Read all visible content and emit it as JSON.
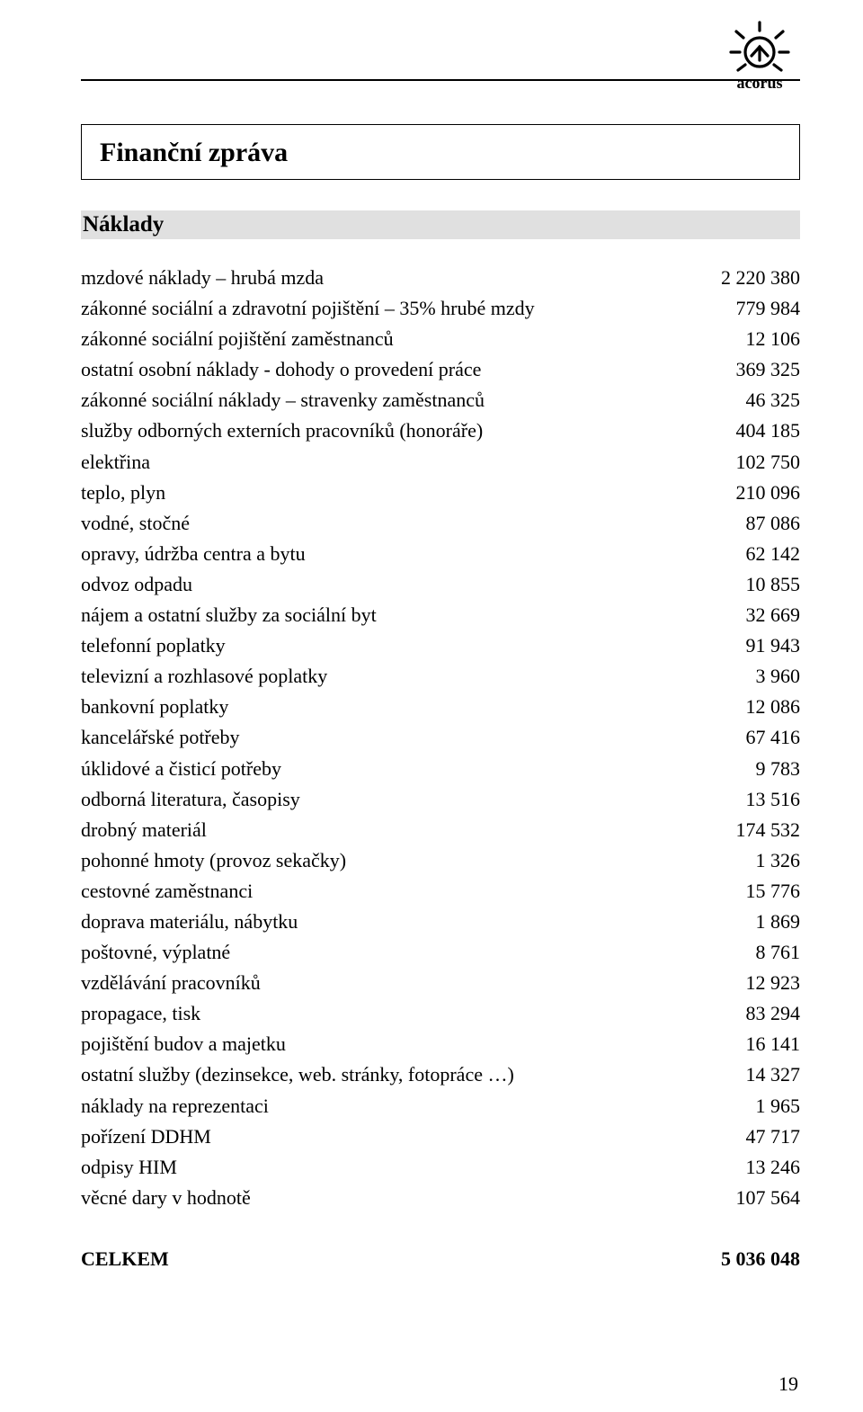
{
  "brand": {
    "name": "acorus"
  },
  "title": "Finanční zpráva",
  "section": "Náklady",
  "rows": [
    {
      "label": "mzdové náklady – hrubá mzda",
      "value": "2 220 380"
    },
    {
      "label": "zákonné sociální a zdravotní pojištění – 35% hrubé mzdy",
      "value": "779 984"
    },
    {
      "label": "zákonné sociální pojištění zaměstnanců",
      "value": "12 106"
    },
    {
      "label": "ostatní osobní náklady - dohody o provedení práce",
      "value": "369 325"
    },
    {
      "label": "zákonné sociální náklady – stravenky zaměstnanců",
      "value": "46 325"
    },
    {
      "label": "služby odborných externích pracovníků (honoráře)",
      "value": "404 185"
    },
    {
      "label": "elektřina",
      "value": "102 750"
    },
    {
      "label": "teplo, plyn",
      "value": "210 096"
    },
    {
      "label": "vodné, stočné",
      "value": "87 086"
    },
    {
      "label": "opravy, údržba centra a bytu",
      "value": "62 142"
    },
    {
      "label": "odvoz odpadu",
      "value": "10 855"
    },
    {
      "label": "nájem a ostatní služby za sociální byt",
      "value": "32 669"
    },
    {
      "label": "telefonní poplatky",
      "value": "91 943"
    },
    {
      "label": "televizní a rozhlasové poplatky",
      "value": "3 960"
    },
    {
      "label": "bankovní poplatky",
      "value": "12 086"
    },
    {
      "label": "kancelářské potřeby",
      "value": "67 416"
    },
    {
      "label": "úklidové a čisticí potřeby",
      "value": "9 783"
    },
    {
      "label": "odborná literatura, časopisy",
      "value": "13 516"
    },
    {
      "label": "drobný materiál",
      "value": "174 532"
    },
    {
      "label": "pohonné hmoty (provoz sekačky)",
      "value": "1 326"
    },
    {
      "label": "cestovné zaměstnanci",
      "value": "15 776"
    },
    {
      "label": "doprava materiálu, nábytku",
      "value": "1 869"
    },
    {
      "label": "poštovné, výplatné",
      "value": "8 761"
    },
    {
      "label": "vzdělávání pracovníků",
      "value": "12 923"
    },
    {
      "label": "propagace, tisk",
      "value": "83 294"
    },
    {
      "label": "pojištění budov a majetku",
      "value": "16 141"
    },
    {
      "label": "ostatní služby (dezinsekce, web. stránky, fotopráce …)",
      "value": "14 327"
    },
    {
      "label": "náklady na reprezentaci",
      "value": "1 965"
    },
    {
      "label": "pořízení DDHM",
      "value": "47 717"
    },
    {
      "label": "odpisy HIM",
      "value": "13 246"
    },
    {
      "label": "věcné dary v hodnotě",
      "value": "107 564"
    }
  ],
  "total": {
    "label": "CELKEM",
    "value": "5 036 048"
  },
  "page_number": "19",
  "styling": {
    "font_family": "Palatino Linotype / Book Antiqua",
    "title_fontsize_pt": 22,
    "section_fontsize_pt": 18,
    "row_fontsize_pt": 16,
    "section_bg": "#e0e0e0",
    "text_color": "#000000",
    "page_bg": "#ffffff",
    "rule_color": "#000000"
  }
}
